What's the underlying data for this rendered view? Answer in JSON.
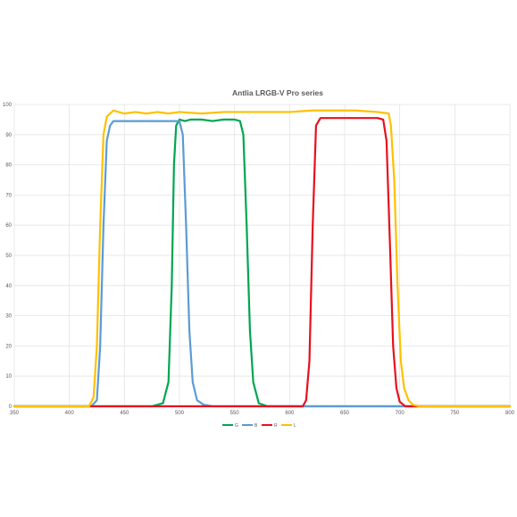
{
  "chart_data": {
    "type": "line",
    "title": "Antlia LRGB-V Pro series",
    "xlabel": "",
    "ylabel": "",
    "xlim": [
      350,
      800
    ],
    "ylim": [
      0,
      100
    ],
    "x_ticks": [
      350,
      400,
      450,
      500,
      550,
      600,
      650,
      700,
      750,
      800
    ],
    "y_ticks": [
      0,
      10,
      20,
      30,
      40,
      50,
      60,
      70,
      80,
      90,
      100
    ],
    "grid": true,
    "legend_position": "bottom",
    "series": [
      {
        "name": "G",
        "color": "#00a651",
        "x": [
          350,
          475,
          485,
          490,
          493,
          495,
          497,
          500,
          505,
          510,
          520,
          530,
          540,
          550,
          555,
          558,
          561,
          564,
          567,
          572,
          580,
          800
        ],
        "y": [
          0,
          0,
          1,
          8,
          40,
          80,
          93,
          95,
          94.5,
          95,
          95,
          94.5,
          95,
          95,
          94.5,
          90,
          60,
          25,
          8,
          1,
          0,
          0
        ]
      },
      {
        "name": "B",
        "color": "#5b9bd5",
        "x": [
          350,
          420,
          425,
          428,
          431,
          434,
          437,
          440,
          450,
          460,
          470,
          480,
          490,
          500,
          503,
          506,
          509,
          512,
          516,
          522,
          530,
          800
        ],
        "y": [
          0,
          0,
          2,
          20,
          60,
          88,
          93,
          94.5,
          94.5,
          94.5,
          94.5,
          94.5,
          94.5,
          94.5,
          90,
          60,
          25,
          8,
          2,
          0.5,
          0,
          0
        ]
      },
      {
        "name": "R",
        "color": "#e8101e",
        "x": [
          350,
          612,
          615,
          618,
          621,
          624,
          628,
          640,
          660,
          670,
          680,
          685,
          688,
          691,
          694,
          697,
          700,
          705,
          800
        ],
        "y": [
          0,
          0,
          2,
          15,
          60,
          93,
          95.5,
          95.5,
          95.5,
          95.5,
          95.5,
          95,
          88,
          55,
          20,
          6,
          1.5,
          0,
          0
        ]
      },
      {
        "name": "L",
        "color": "#ffc000",
        "x": [
          350,
          418,
          422,
          425,
          428,
          431,
          434,
          437,
          440,
          450,
          460,
          470,
          480,
          490,
          500,
          520,
          540,
          560,
          580,
          600,
          620,
          640,
          660,
          680,
          690,
          692,
          695,
          698,
          701,
          704,
          708,
          712,
          718,
          800
        ],
        "y": [
          0,
          0,
          3,
          20,
          60,
          90,
          96,
          97,
          98,
          97,
          97.5,
          97,
          97.5,
          97,
          97.5,
          97,
          97.5,
          97.5,
          97.5,
          97.5,
          98,
          98,
          98,
          97.5,
          97,
          93,
          75,
          40,
          15,
          6,
          2,
          0.5,
          0,
          0
        ]
      }
    ]
  }
}
